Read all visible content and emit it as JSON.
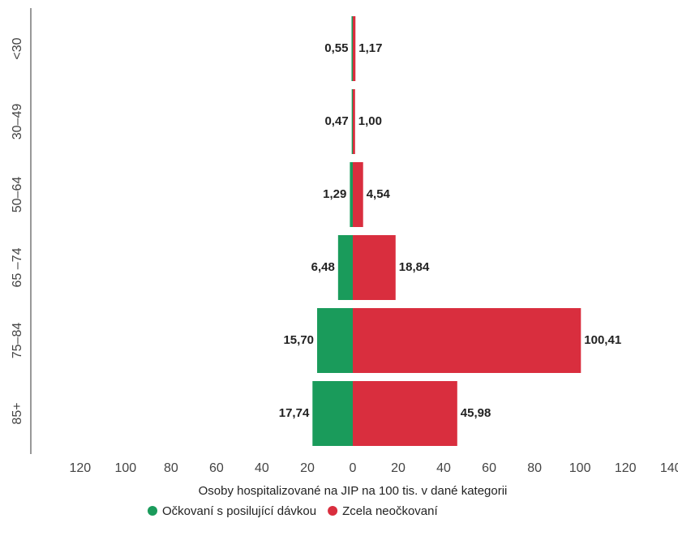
{
  "chart_data": {
    "type": "butterfly",
    "categories": [
      "<30",
      "30–49",
      "50–64",
      "65 –74",
      "75–84",
      "85+"
    ],
    "series": [
      {
        "name": "Očkovaní s posilující dávkou",
        "color": "#1a9b5b",
        "side": "left",
        "values": [
          0.55,
          0.47,
          1.29,
          6.48,
          15.7,
          17.74
        ],
        "value_labels": [
          "0,55",
          "0,47",
          "1,29",
          "6,48",
          "15,70",
          "17,74"
        ]
      },
      {
        "name": "Zcela neočkovaní",
        "color": "#d92e3e",
        "side": "right",
        "values": [
          1.17,
          1.0,
          4.54,
          18.84,
          100.41,
          45.98
        ],
        "value_labels": [
          "1,17",
          "1,00",
          "4,54",
          "18,84",
          "100,41",
          "45,98"
        ]
      }
    ],
    "xlabel": "Osoby hospitalizované na JIP na 100 tis. v dané kategorii",
    "xlim": [
      -141,
      141
    ],
    "xticks": [
      {
        "value": -120,
        "label": "120"
      },
      {
        "value": -100,
        "label": "100"
      },
      {
        "value": -80,
        "label": "80"
      },
      {
        "value": -60,
        "label": "60"
      },
      {
        "value": -40,
        "label": "40"
      },
      {
        "value": -20,
        "label": "20"
      },
      0,
      20,
      40,
      60,
      80,
      100,
      120,
      140
    ],
    "legend": "bottom"
  }
}
